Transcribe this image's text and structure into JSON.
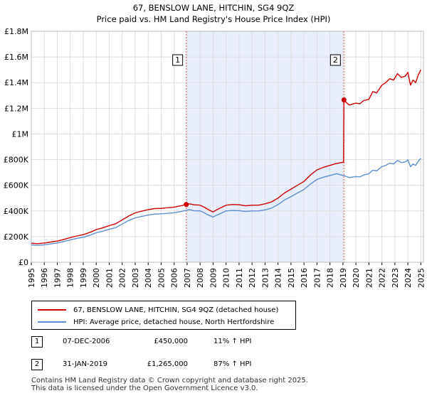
{
  "chart_data": {
    "type": "line",
    "title": "67, BENSLOW LANE, HITCHIN, SG4 9QZ",
    "subtitle": "Price paid vs. HM Land Registry's House Price Index (HPI)",
    "xlim": [
      1995,
      2025.2
    ],
    "ylim": [
      0,
      1800000
    ],
    "y_ticks": [
      {
        "value": 0,
        "label": "£0"
      },
      {
        "value": 200000,
        "label": "£200K"
      },
      {
        "value": 400000,
        "label": "£400K"
      },
      {
        "value": 600000,
        "label": "£600K"
      },
      {
        "value": 800000,
        "label": "£800K"
      },
      {
        "value": 1000000,
        "label": "£1M"
      },
      {
        "value": 1200000,
        "label": "£1.2M"
      },
      {
        "value": 1400000,
        "label": "£1.4M"
      },
      {
        "value": 1600000,
        "label": "£1.6M"
      },
      {
        "value": 1800000,
        "label": "£1.8M"
      }
    ],
    "x_ticks": [
      "1995",
      "1996",
      "1997",
      "1998",
      "1999",
      "2000",
      "2001",
      "2002",
      "2003",
      "2004",
      "2005",
      "2006",
      "2007",
      "2008",
      "2009",
      "2010",
      "2011",
      "2012",
      "2013",
      "2014",
      "2015",
      "2016",
      "2017",
      "2018",
      "2019",
      "2020",
      "2021",
      "2022",
      "2023",
      "2024",
      "2025"
    ],
    "grid": true,
    "shaded_period": [
      2006.93,
      2019.08
    ],
    "series": [
      {
        "name": "67, BENSLOW LANE, HITCHIN, SG4 9QZ (detached house)",
        "color": "#cc0000",
        "x": [
          1995,
          1995.5,
          1996,
          1996.5,
          1997,
          1997.5,
          1998,
          1998.5,
          1999,
          1999.5,
          2000,
          2000.5,
          2001,
          2001.5,
          2002,
          2002.5,
          2003,
          2003.5,
          2004,
          2004.5,
          2005,
          2005.5,
          2006,
          2006.5,
          2006.93,
          2007.2,
          2007.5,
          2008,
          2008.3,
          2008.6,
          2009,
          2009.3,
          2009.7,
          2010,
          2010.5,
          2011,
          2011.5,
          2012,
          2012.5,
          2013,
          2013.5,
          2014,
          2014.5,
          2015,
          2015.5,
          2016,
          2016.5,
          2017,
          2017.5,
          2018,
          2018.5,
          2019.05,
          2019.08,
          2019.2,
          2019.5,
          2020,
          2020.3,
          2020.6,
          2021,
          2021.3,
          2021.6,
          2022,
          2022.3,
          2022.6,
          2022.9,
          2023.2,
          2023.5,
          2023.8,
          2024,
          2024.2,
          2024.4,
          2024.6,
          2024.8,
          2025
        ],
        "values": [
          148000,
          145000,
          150000,
          158000,
          165000,
          178000,
          192000,
          205000,
          215000,
          232000,
          255000,
          268000,
          285000,
          300000,
          330000,
          360000,
          385000,
          398000,
          410000,
          418000,
          420000,
          425000,
          430000,
          440000,
          450000,
          455000,
          448000,
          445000,
          430000,
          412000,
          392000,
          410000,
          430000,
          445000,
          450000,
          448000,
          440000,
          445000,
          445000,
          455000,
          470000,
          500000,
          540000,
          570000,
          600000,
          630000,
          680000,
          720000,
          740000,
          755000,
          770000,
          780000,
          1265000,
          1250000,
          1225000,
          1240000,
          1235000,
          1260000,
          1270000,
          1330000,
          1320000,
          1380000,
          1400000,
          1430000,
          1420000,
          1470000,
          1440000,
          1450000,
          1480000,
          1380000,
          1420000,
          1400000,
          1460000,
          1500000
        ]
      },
      {
        "name": "HPI: Average price, detached house, North Hertfordshire",
        "color": "#5b8fd0",
        "x": [
          1995,
          1995.5,
          1996,
          1996.5,
          1997,
          1997.5,
          1998,
          1998.5,
          1999,
          1999.5,
          2000,
          2000.5,
          2001,
          2001.5,
          2002,
          2002.5,
          2003,
          2003.5,
          2004,
          2004.5,
          2005,
          2005.5,
          2006,
          2006.5,
          2006.93,
          2007.2,
          2007.5,
          2008,
          2008.3,
          2008.6,
          2009,
          2009.3,
          2009.7,
          2010,
          2010.5,
          2011,
          2011.5,
          2012,
          2012.5,
          2013,
          2013.5,
          2014,
          2014.5,
          2015,
          2015.5,
          2016,
          2016.5,
          2017,
          2017.5,
          2018,
          2018.5,
          2019.05,
          2019.08,
          2019.2,
          2019.5,
          2020,
          2020.3,
          2020.6,
          2021,
          2021.3,
          2021.6,
          2022,
          2022.3,
          2022.6,
          2022.9,
          2023.2,
          2023.5,
          2023.8,
          2024,
          2024.2,
          2024.4,
          2024.6,
          2024.8,
          2025
        ],
        "values": [
          135000,
          132000,
          136000,
          143000,
          150000,
          161000,
          174000,
          186000,
          195000,
          210000,
          230000,
          242000,
          257000,
          270000,
          298000,
          325000,
          346000,
          357000,
          368000,
          375000,
          378000,
          381000,
          386000,
          395000,
          405000,
          410000,
          402000,
          400000,
          386000,
          370000,
          352000,
          368000,
          386000,
          400000,
          404000,
          402000,
          396000,
          400000,
          400000,
          408000,
          422000,
          449000,
          485000,
          512000,
          540000,
          567000,
          610000,
          645000,
          663000,
          676000,
          690000,
          675000,
          676000,
          670000,
          660000,
          668000,
          665000,
          680000,
          690000,
          718000,
          712000,
          745000,
          755000,
          772000,
          766000,
          793000,
          777000,
          782000,
          798000,
          745000,
          766000,
          755000,
          788000,
          810000
        ]
      }
    ],
    "annotations": [
      {
        "label": "1",
        "x": 2006.93,
        "value": 450000
      },
      {
        "label": "2",
        "x": 2019.08,
        "value": 1265000
      }
    ]
  },
  "legend": {
    "items": [
      {
        "label": "67, BENSLOW LANE, HITCHIN, SG4 9QZ (detached house)",
        "color": "#cc0000"
      },
      {
        "label": "HPI: Average price, detached house, North Hertfordshire",
        "color": "#5b8fd0"
      }
    ]
  },
  "transactions": [
    {
      "id": "1",
      "date": "07-DEC-2006",
      "price": "£450,000",
      "hpi": "11% ↑ HPI"
    },
    {
      "id": "2",
      "date": "31-JAN-2019",
      "price": "£1,265,000",
      "hpi": "87% ↑ HPI"
    }
  ],
  "footer": {
    "line1": "Contains HM Land Registry data © Crown copyright and database right 2025.",
    "line2": "This data is licensed under the Open Government Licence v3.0."
  }
}
